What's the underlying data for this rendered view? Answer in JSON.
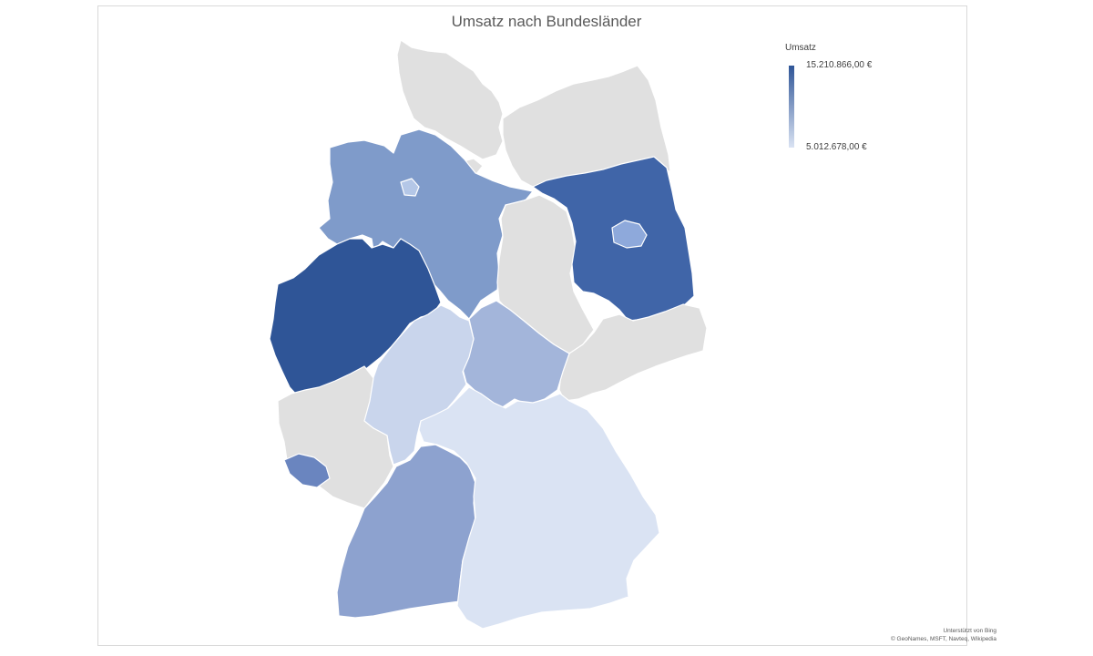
{
  "title": "Umsatz nach Bundesländer",
  "legend": {
    "title": "Umsatz",
    "max_label": "15.210.866,00 €",
    "min_label": "5.012.678,00 €",
    "color_max": "#2f5597",
    "color_min": "#dae3f3"
  },
  "no_data_color": "#e0e0e0",
  "credit": {
    "line1": "Unterstützt von Bing",
    "line2": "© GeoNames, MSFT, Navteq, Wikipedia"
  },
  "regions": [
    {
      "name": "Schleswig-Holstein",
      "color": "#e0e0e0"
    },
    {
      "name": "Mecklenburg-Vorpommern",
      "color": "#e0e0e0"
    },
    {
      "name": "Hamburg",
      "color": "#e0e0e0"
    },
    {
      "name": "Bremen",
      "color": "#b4c7e7"
    },
    {
      "name": "Niedersachsen",
      "color": "#7f9bca"
    },
    {
      "name": "Brandenburg",
      "color": "#4065a8"
    },
    {
      "name": "Berlin",
      "color": "#8ea9db"
    },
    {
      "name": "Sachsen-Anhalt",
      "color": "#e0e0e0"
    },
    {
      "name": "Nordrhein-Westfalen",
      "color": "#2f5597"
    },
    {
      "name": "Sachsen",
      "color": "#e0e0e0"
    },
    {
      "name": "Thüringen",
      "color": "#a3b5da"
    },
    {
      "name": "Hessen",
      "color": "#c9d5ec"
    },
    {
      "name": "Rheinland-Pfalz",
      "color": "#e0e0e0"
    },
    {
      "name": "Saarland",
      "color": "#6a85bf"
    },
    {
      "name": "Baden-Württemberg",
      "color": "#8da2cf"
    },
    {
      "name": "Bayern",
      "color": "#dae3f3"
    }
  ]
}
